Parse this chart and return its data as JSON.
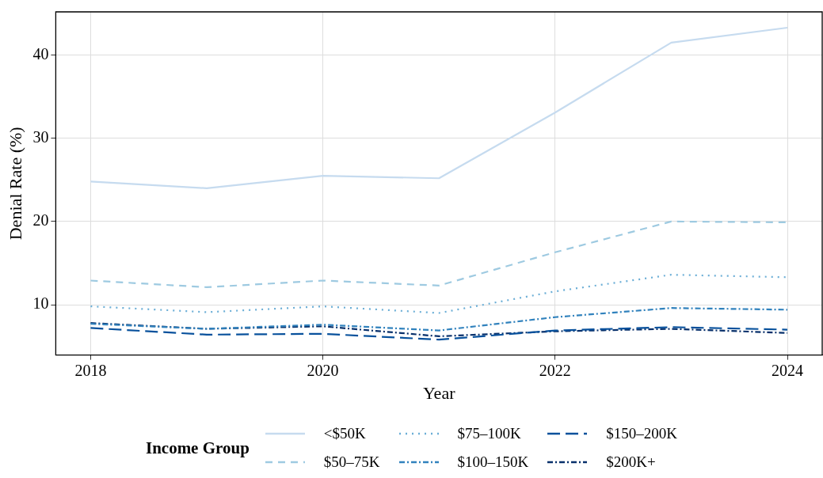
{
  "chart_data": {
    "type": "line",
    "xlabel": "Year",
    "ylabel": "Denial Rate (%)",
    "legend_title": "Income Group",
    "x": [
      2018,
      2019,
      2020,
      2021,
      2022,
      2023,
      2024
    ],
    "xlim": [
      2017.7,
      2024.3
    ],
    "xticks": [
      2018,
      2020,
      2022,
      2024
    ],
    "ylim": [
      3.95,
      45.2
    ],
    "yticks": [
      10,
      20,
      30,
      40
    ],
    "grid": true,
    "legend": "bottom",
    "marker": "none",
    "series": [
      {
        "name": "<$50K",
        "color": "#c6dbef",
        "line_style": "solid",
        "values": [
          24.8,
          24.0,
          25.5,
          25.2,
          33.1,
          41.5,
          43.3
        ]
      },
      {
        "name": "$50–75K",
        "color": "#9ecae1",
        "line_style": "dashed",
        "values": [
          12.9,
          12.1,
          12.9,
          12.3,
          16.3,
          20.0,
          19.9
        ]
      },
      {
        "name": "$75–100K",
        "color": "#6baed6",
        "line_style": "dotted",
        "values": [
          9.8,
          9.1,
          9.8,
          9.0,
          11.6,
          13.6,
          13.3
        ]
      },
      {
        "name": "$100–150K",
        "color": "#3182bd",
        "line_style": "dashdot",
        "values": [
          7.7,
          7.1,
          7.6,
          6.9,
          8.5,
          9.6,
          9.4
        ]
      },
      {
        "name": "$150–200K",
        "color": "#08519c",
        "line_style": "longdash",
        "values": [
          7.2,
          6.4,
          6.5,
          5.8,
          6.9,
          7.3,
          7.0
        ]
      },
      {
        "name": "$200K+",
        "color": "#08306b",
        "line_style": "dashdot",
        "values": [
          7.8,
          7.1,
          7.4,
          6.2,
          6.8,
          7.1,
          6.6
        ]
      }
    ]
  }
}
